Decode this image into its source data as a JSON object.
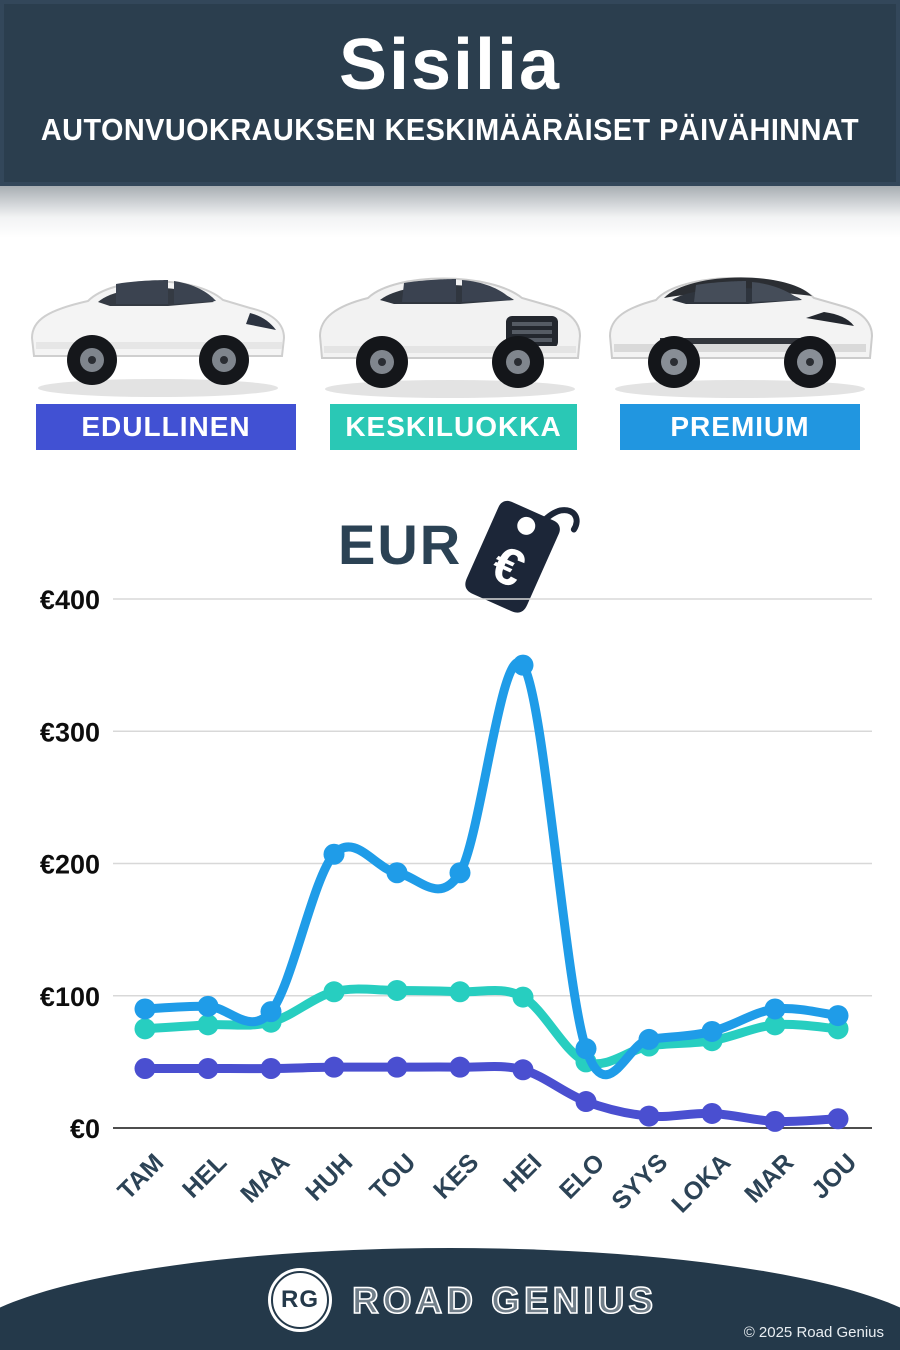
{
  "header": {
    "title": "Sisilia",
    "subtitle": "AUTONVUOKRAUKSEN KESKIMÄÄRÄISET PÄIVÄHINNAT",
    "background_color": "#2B3E4E"
  },
  "categories": [
    {
      "label": "EDULLINEN",
      "color": "#4151D3"
    },
    {
      "label": "KESKILUOKKA",
      "color": "#2AC8B5"
    },
    {
      "label": "PREMIUM",
      "color": "#2196E0"
    }
  ],
  "currency": {
    "label": "EUR",
    "tag_symbol": "€",
    "tag_color": "#1C2638"
  },
  "chart_data": {
    "type": "line",
    "categories": [
      "TAM",
      "HEL",
      "MAA",
      "HUH",
      "TOU",
      "KES",
      "HEI",
      "ELO",
      "SYYS",
      "LOKA",
      "MAR",
      "JOU"
    ],
    "series": [
      {
        "name": "PREMIUM",
        "color": "#1F9CE8",
        "values": [
          90,
          92,
          88,
          207,
          193,
          193,
          350,
          60,
          67,
          73,
          90,
          85
        ]
      },
      {
        "name": "KESKILUOKKA",
        "color": "#27CEC0",
        "values": [
          75,
          78,
          80,
          103,
          104,
          103,
          99,
          50,
          62,
          66,
          78,
          75
        ]
      },
      {
        "name": "EDULLINEN",
        "color": "#4A4FD0",
        "values": [
          45,
          45,
          45,
          46,
          46,
          46,
          44,
          20,
          9,
          11,
          5,
          7
        ]
      }
    ],
    "y_ticks": [
      {
        "value": 400,
        "label": "€400"
      },
      {
        "value": 300,
        "label": "€300"
      },
      {
        "value": 200,
        "label": "€200"
      },
      {
        "value": 100,
        "label": "€100"
      },
      {
        "value": 0,
        "label": "€0"
      }
    ],
    "ylim": [
      0,
      400
    ],
    "xlabel": "",
    "ylabel": "EUR",
    "grid": true,
    "legend_position": "none"
  },
  "footer": {
    "logo_initials": "RG",
    "brand": "ROAD GENIUS",
    "copyright": "© 2025 Road Genius"
  }
}
